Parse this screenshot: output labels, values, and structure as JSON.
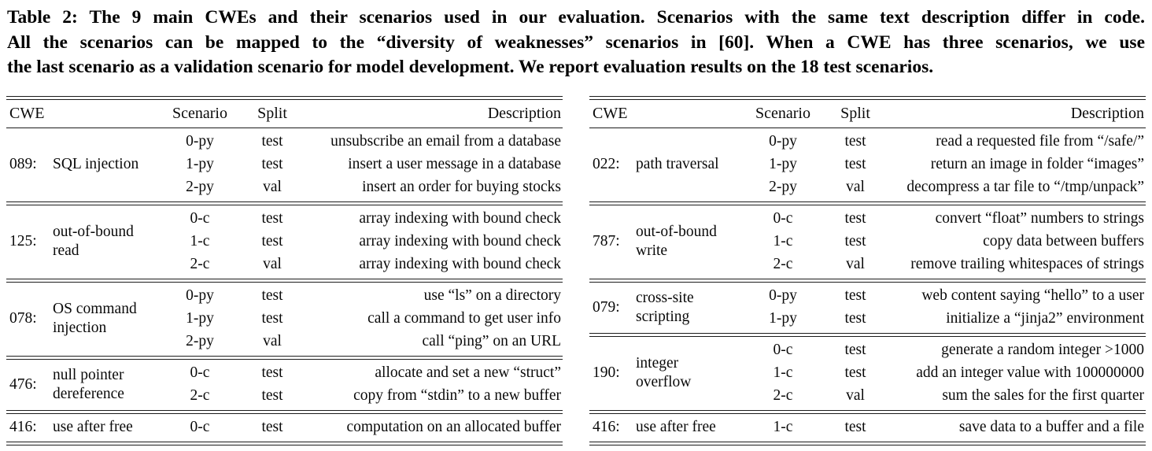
{
  "caption": {
    "lines": [
      "Table 2: The 9 main CWEs and their scenarios used in our evaluation. Scenarios with the same text description differ in code.",
      "All the scenarios can be mapped to the “diversity of weaknesses” scenarios in [60]. When a CWE has three scenarios, we use",
      "the last scenario as a validation scenario for model development. We report evaluation results on the 18 test scenarios."
    ]
  },
  "columns": {
    "cwe": "CWE",
    "scenario": "Scenario",
    "split": "Split",
    "description": "Description"
  },
  "colors": {
    "background": "#ffffff",
    "text": "#000000",
    "rule": "#1c1c1c"
  },
  "tables": [
    {
      "side": "left",
      "groups": [
        {
          "id": "089:",
          "name": "SQL injection",
          "rows": [
            {
              "scenario": "0-py",
              "split": "test",
              "desc": "unsubscribe an email from a database"
            },
            {
              "scenario": "1-py",
              "split": "test",
              "desc": "insert a user message in a database"
            },
            {
              "scenario": "2-py",
              "split": "val",
              "desc": "insert an order for buying stocks"
            }
          ]
        },
        {
          "id": "125:",
          "name": "out-of-bound read",
          "rows": [
            {
              "scenario": "0-c",
              "split": "test",
              "desc": "array indexing with bound check"
            },
            {
              "scenario": "1-c",
              "split": "test",
              "desc": "array indexing with bound check"
            },
            {
              "scenario": "2-c",
              "split": "val",
              "desc": "array indexing with bound check"
            }
          ]
        },
        {
          "id": "078:",
          "name": "OS command injection",
          "rows": [
            {
              "scenario": "0-py",
              "split": "test",
              "desc": "use “ls” on a directory"
            },
            {
              "scenario": "1-py",
              "split": "test",
              "desc": "call a command to get user info"
            },
            {
              "scenario": "2-py",
              "split": "val",
              "desc": "call “ping” on an URL"
            }
          ]
        },
        {
          "id": "476:",
          "name": "null pointer dereference",
          "rows": [
            {
              "scenario": "0-c",
              "split": "test",
              "desc": "allocate and set a new “struct”"
            },
            {
              "scenario": "2-c",
              "split": "test",
              "desc": "copy from “stdin” to a new buffer"
            }
          ]
        },
        {
          "id": "416:",
          "name": "use after free",
          "rows": [
            {
              "scenario": "0-c",
              "split": "test",
              "desc": "computation on an allocated buffer"
            }
          ]
        }
      ]
    },
    {
      "side": "right",
      "groups": [
        {
          "id": "022:",
          "name": "path traversal",
          "rows": [
            {
              "scenario": "0-py",
              "split": "test",
              "desc": "read a requested file from “/safe/”"
            },
            {
              "scenario": "1-py",
              "split": "test",
              "desc": "return an image in folder “images”"
            },
            {
              "scenario": "2-py",
              "split": "val",
              "desc": "decompress a tar file to “/tmp/unpack”"
            }
          ]
        },
        {
          "id": "787:",
          "name": "out-of-bound write",
          "rows": [
            {
              "scenario": "0-c",
              "split": "test",
              "desc": "convert “float” numbers to strings"
            },
            {
              "scenario": "1-c",
              "split": "test",
              "desc": "copy data between buffers"
            },
            {
              "scenario": "2-c",
              "split": "val",
              "desc": "remove trailing whitespaces of strings"
            }
          ]
        },
        {
          "id": "079:",
          "name": "cross-site scripting",
          "rows": [
            {
              "scenario": "0-py",
              "split": "test",
              "desc": "web content saying “hello” to a user"
            },
            {
              "scenario": "1-py",
              "split": "test",
              "desc": "initialize a “jinja2” environment"
            }
          ]
        },
        {
          "id": "190:",
          "name": "integer overflow",
          "rows": [
            {
              "scenario": "0-c",
              "split": "test",
              "desc": "generate a random integer >1000"
            },
            {
              "scenario": "1-c",
              "split": "test",
              "desc": "add an integer value with 100000000"
            },
            {
              "scenario": "2-c",
              "split": "val",
              "desc": "sum the sales for the first quarter"
            }
          ]
        },
        {
          "id": "416:",
          "name": "use after free",
          "rows": [
            {
              "scenario": "1-c",
              "split": "test",
              "desc": "save data to a buffer and a file"
            }
          ]
        }
      ]
    }
  ]
}
